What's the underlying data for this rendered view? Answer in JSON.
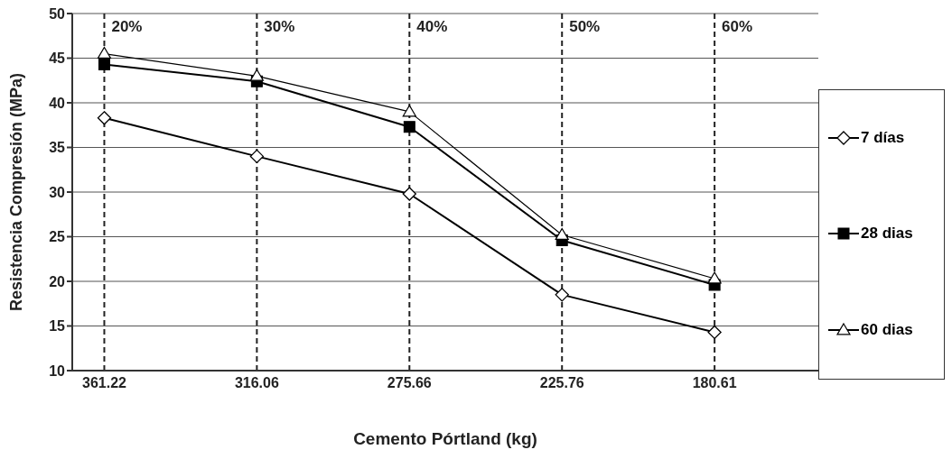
{
  "chart_data": {
    "type": "line",
    "xlabel": "Cemento Pórtland (kg)",
    "ylabel": "Resistencia Compresión (MPa)",
    "categories": [
      "361.22",
      "316.06",
      "275.66",
      "225.76",
      "180.61"
    ],
    "series": [
      {
        "name": "7 días",
        "color": "#000000",
        "marker": "diamond",
        "values": [
          38.3,
          34,
          29.8,
          18.5,
          14.3
        ]
      },
      {
        "name": "28 dias",
        "color": "#000000",
        "marker": "square",
        "values": [
          44.3,
          42.4,
          37.3,
          24.6,
          19.6
        ]
      },
      {
        "name": "60 dias",
        "color": "#000000",
        "marker": "triangle",
        "values": [
          45.5,
          43,
          39,
          25.2,
          20.3
        ]
      }
    ],
    "ref_lines": [
      {
        "axis": "x",
        "value": "361.22",
        "label": "20%",
        "line_style": "dashed"
      },
      {
        "axis": "x",
        "value": "316.06",
        "label": "30%",
        "line_style": "dashed"
      },
      {
        "axis": "x",
        "value": "275.66",
        "label": "40%",
        "line_style": "dashed"
      },
      {
        "axis": "x",
        "value": "225.76",
        "label": "50%",
        "line_style": "dashed"
      },
      {
        "axis": "x",
        "value": "180.61",
        "label": "60%",
        "line_style": "dashed"
      }
    ],
    "ylim": [
      10,
      50
    ],
    "yticks": [
      10,
      15,
      20,
      25,
      30,
      35,
      40,
      45,
      50
    ],
    "grid": "y",
    "legend": "right",
    "line_style": "solid"
  }
}
